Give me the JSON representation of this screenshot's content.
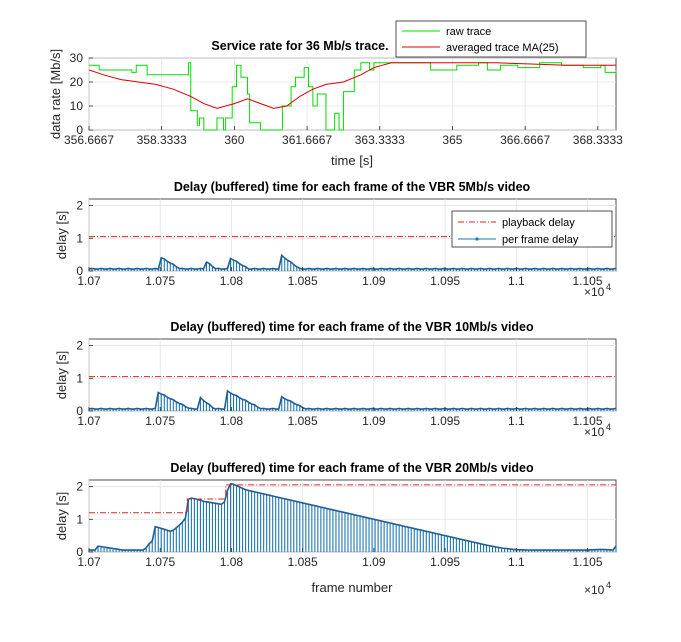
{
  "chart_data": [
    {
      "type": "line",
      "title": "Service rate for 36 Mb/s trace.",
      "xlabel": "time [s]",
      "ylabel": "data rate [Mb/s]",
      "xlim": [
        356.6667,
        368.75
      ],
      "ylim": [
        0,
        30
      ],
      "xticks": [
        356.6667,
        358.3333,
        360,
        361.6667,
        363.3333,
        365,
        366.6667,
        368.3333
      ],
      "xtick_labels": [
        "356.6667",
        "358.3333",
        "360",
        "361.6667",
        "363.3333",
        "365",
        "366.6667",
        "368.3333"
      ],
      "yticks": [
        0,
        10,
        20,
        30
      ],
      "ytick_labels": [
        "0",
        "10",
        "20",
        "30"
      ],
      "grid": true,
      "legend_position": "top-right",
      "series": [
        {
          "name": "raw trace",
          "color": "#00dd00",
          "step": true,
          "x": [
            356.67,
            356.9,
            357.6,
            357.65,
            357.75,
            358.0,
            358.95,
            359.0,
            359.15,
            359.2,
            359.3,
            359.6,
            359.75,
            359.8,
            359.95,
            360.05,
            360.15,
            360.3,
            360.35,
            360.6,
            360.9,
            361.1,
            361.3,
            361.4,
            361.6,
            361.7,
            361.8,
            361.9,
            362.1,
            362.3,
            362.4,
            362.5,
            362.75,
            362.9,
            363.1,
            363.2,
            363.5,
            364.0,
            364.3,
            364.5,
            364.9,
            365.1,
            365.6,
            365.8,
            366.1,
            366.5,
            367.0,
            367.5,
            368.0,
            368.4,
            368.5,
            368.75
          ],
          "y": [
            27,
            25,
            25,
            24,
            27,
            23,
            28,
            8,
            2,
            5,
            0,
            5,
            0,
            5,
            18,
            27,
            22,
            15,
            3,
            0,
            0,
            10,
            18,
            22,
            26,
            18,
            10,
            15,
            0,
            7,
            0,
            16,
            25,
            28,
            25,
            28,
            28,
            28,
            28,
            25,
            25,
            27,
            28,
            25,
            27,
            26,
            28,
            27,
            26,
            27,
            24,
            25
          ]
        },
        {
          "name": "averaged trace MA(25)",
          "color": "#dd0000",
          "x": [
            356.67,
            357.0,
            357.4,
            357.8,
            358.2,
            358.6,
            359.0,
            359.3,
            359.6,
            360.0,
            360.3,
            360.6,
            360.9,
            361.2,
            361.5,
            361.8,
            362.1,
            362.5,
            362.9,
            363.2,
            363.6,
            364.0,
            364.6,
            365.2,
            366.0,
            366.8,
            367.6,
            368.4,
            368.75
          ],
          "y": [
            25,
            23,
            21,
            20,
            19,
            17,
            14,
            11,
            9,
            11,
            13,
            11,
            9,
            10,
            14,
            17,
            19,
            20,
            23,
            26,
            28,
            28,
            28,
            28,
            28,
            27.5,
            27,
            27,
            27
          ]
        }
      ]
    },
    {
      "type": "bar",
      "title": "Delay (buffered) time for each frame of the VBR 5Mb/s video",
      "xlabel": "",
      "ylabel": "delay [s]",
      "x_exponent": "×10",
      "x_exponent_power": "4",
      "xlim": [
        1.07,
        1.107
      ],
      "ylim": [
        0,
        2.2
      ],
      "xticks": [
        1.07,
        1.075,
        1.08,
        1.085,
        1.09,
        1.095,
        1.1,
        1.105
      ],
      "xtick_labels": [
        "1.07",
        "1.075",
        "1.08",
        "1.085",
        "1.09",
        "1.095",
        "1.1",
        "1.105"
      ],
      "yticks": [
        0,
        1,
        2
      ],
      "ytick_labels": [
        "0",
        "1",
        "2"
      ],
      "grid": true,
      "legend_position": "top-right",
      "playback_delay": 1.05,
      "base_delay": 0.06,
      "bumps": [
        {
          "start": 1.0749,
          "end": 1.0764,
          "peak": 0.45
        },
        {
          "start": 1.0781,
          "end": 1.0789,
          "peak": 0.32
        },
        {
          "start": 1.0798,
          "end": 1.0812,
          "peak": 0.42
        },
        {
          "start": 1.0834,
          "end": 1.0848,
          "peak": 0.5
        }
      ],
      "series": [
        {
          "name": "playback delay",
          "color": "#d62728",
          "style": "dash-dot"
        },
        {
          "name": "per frame delay",
          "color": "#1f77b4",
          "style": "stem"
        }
      ]
    },
    {
      "type": "bar",
      "title": "Delay (buffered) time for each frame of the VBR 10Mb/s video",
      "xlabel": "",
      "ylabel": "delay [s]",
      "x_exponent": "×10",
      "x_exponent_power": "4",
      "xlim": [
        1.07,
        1.107
      ],
      "ylim": [
        0,
        2.2
      ],
      "xticks": [
        1.07,
        1.075,
        1.08,
        1.085,
        1.09,
        1.095,
        1.1,
        1.105
      ],
      "xtick_labels": [
        "1.07",
        "1.075",
        "1.08",
        "1.085",
        "1.09",
        "1.095",
        "1.1",
        "1.105"
      ],
      "yticks": [
        0,
        1,
        2
      ],
      "ytick_labels": [
        "0",
        "1",
        "2"
      ],
      "grid": true,
      "playback_delay": 1.05,
      "base_delay": 0.06,
      "bumps": [
        {
          "start": 1.0747,
          "end": 1.0771,
          "peak": 0.6
        },
        {
          "start": 1.0778,
          "end": 1.0788,
          "peak": 0.4
        },
        {
          "start": 1.0797,
          "end": 1.0821,
          "peak": 0.6
        },
        {
          "start": 1.0834,
          "end": 1.0852,
          "peak": 0.45
        }
      ]
    },
    {
      "type": "bar",
      "title": "Delay (buffered) time for each frame of the VBR 20Mb/s video",
      "xlabel": "frame number",
      "ylabel": "delay [s]",
      "x_exponent": "×10",
      "x_exponent_power": "4",
      "xlim": [
        1.07,
        1.107
      ],
      "ylim": [
        0,
        2.2
      ],
      "xticks": [
        1.07,
        1.075,
        1.08,
        1.085,
        1.09,
        1.095,
        1.1,
        1.105
      ],
      "xtick_labels": [
        "1.07",
        "1.075",
        "1.08",
        "1.085",
        "1.09",
        "1.095",
        "1.1",
        "1.105"
      ],
      "yticks": [
        0,
        1,
        2
      ],
      "ytick_labels": [
        "0",
        "1",
        "2"
      ],
      "grid": true,
      "playback_delay_steps": [
        {
          "x0": 1.07,
          "x1": 1.0769,
          "y": 1.2
        },
        {
          "x0": 1.0769,
          "x1": 1.0796,
          "y": 1.62
        },
        {
          "x0": 1.0796,
          "x1": 1.107,
          "y": 2.05
        }
      ],
      "envelope": {
        "x": [
          1.07,
          1.0705,
          1.0706,
          1.0721,
          1.0722,
          1.0739,
          1.0743,
          1.0745,
          1.0746,
          1.0751,
          1.0758,
          1.0765,
          1.0768,
          1.0769,
          1.0772,
          1.0777,
          1.078,
          1.0794,
          1.0796,
          1.0798,
          1.08,
          1.0805,
          1.081,
          1.082,
          1.083,
          1.084,
          1.085,
          1.086,
          1.087,
          1.088,
          1.089,
          1.09,
          1.091,
          1.092,
          1.093,
          1.094,
          1.095,
          1.096,
          1.097,
          1.098,
          1.099,
          1.1,
          1.101,
          1.102,
          1.103,
          1.104,
          1.1045,
          1.105,
          1.106,
          1.1068,
          1.107
        ],
        "y": [
          0.06,
          0.06,
          0.18,
          0.08,
          0.06,
          0.06,
          0.3,
          0.35,
          0.78,
          0.72,
          0.62,
          0.88,
          1.05,
          1.6,
          1.65,
          1.6,
          1.55,
          1.45,
          1.6,
          2.05,
          2.1,
          2.0,
          1.9,
          1.8,
          1.7,
          1.6,
          1.5,
          1.4,
          1.3,
          1.2,
          1.1,
          1.0,
          0.9,
          0.8,
          0.7,
          0.6,
          0.5,
          0.4,
          0.3,
          0.2,
          0.12,
          0.07,
          0.06,
          0.06,
          0.06,
          0.06,
          0.06,
          0.06,
          0.08,
          0.06,
          0.18
        ]
      }
    }
  ]
}
